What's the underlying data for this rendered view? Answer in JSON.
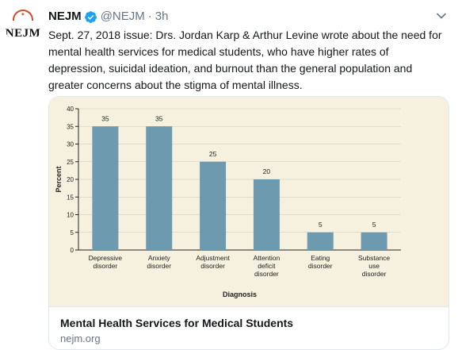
{
  "tweet": {
    "author_name": "NEJM",
    "handle": "@NEJM",
    "separator": "·",
    "time": "3h",
    "avatar_text": "NEJM",
    "text": "Sept. 27, 2018 issue: Drs. Jordan Karp & Arthur Levine wrote about the need for mental health services for medical students, who have higher rates of depression, suicidal ideation, and burnout than the general population and greater concerns about the stigma of mental illness."
  },
  "icons": {
    "verified": "verified-badge-icon",
    "menu": "chevron-down-icon"
  },
  "colors": {
    "accent": "#1da1f2",
    "bar": "#6e9ab0",
    "chart_background": "#f6f1de"
  },
  "card": {
    "title": "Mental Health Services for Medical Students",
    "domain": "nejm.org"
  },
  "chart_data": {
    "type": "bar",
    "categories": [
      [
        "Depressive",
        "disorder"
      ],
      [
        "Anxiety",
        "disorder"
      ],
      [
        "Adjustment",
        "disorder"
      ],
      [
        "Attention",
        "deficit",
        "disorder"
      ],
      [
        "Eating",
        "disorder"
      ],
      [
        "Substance",
        "use",
        "disorder"
      ]
    ],
    "values": [
      35,
      35,
      25,
      20,
      5,
      5
    ],
    "xlabel": "Diagnosis",
    "ylabel": "Percent",
    "ylim": [
      0,
      40
    ],
    "yticks": [
      0,
      5,
      10,
      15,
      20,
      25,
      30,
      35,
      40
    ],
    "grid": true
  }
}
